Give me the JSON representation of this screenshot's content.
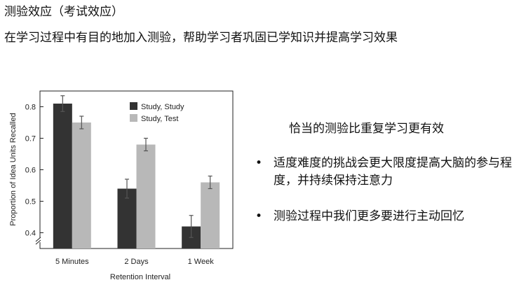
{
  "slide": {
    "title": "测验效应（考试效应）",
    "subtitle": "在学习过程中有目的地加入测验，帮助学习者巩固已学知识并提高学习效果",
    "right_heading": "恰当的测验比重复学习更有效",
    "bullets": [
      {
        "marker": "•",
        "text": "适度难度的挑战会更大限度提高大脑的参与程度，并持续保持注意力"
      },
      {
        "marker": "•",
        "text": "测验过程中我们更多要进行主动回忆"
      }
    ]
  },
  "chart_data": {
    "type": "bar",
    "xlabel": "Retention Interval",
    "ylabel": "Proportion of Idea Units Recalled",
    "categories": [
      "5 Minutes",
      "2 Days",
      "1 Week"
    ],
    "series": [
      {
        "name": "Study, Study",
        "values": [
          0.81,
          0.54,
          0.42
        ],
        "errors": [
          0.025,
          0.03,
          0.035
        ],
        "color": "#333333"
      },
      {
        "name": "Study, Test",
        "values": [
          0.75,
          0.68,
          0.56
        ],
        "errors": [
          0.02,
          0.02,
          0.02
        ],
        "color": "#b8b8b8"
      }
    ],
    "ylim": [
      0.35,
      0.85
    ],
    "yticks": [
      0.4,
      0.5,
      0.6,
      0.7,
      0.8
    ],
    "axis_break": true,
    "grid": false,
    "legend_position": "top-right"
  }
}
